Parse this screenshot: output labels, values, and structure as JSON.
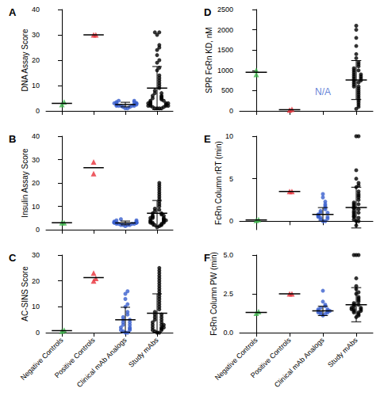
{
  "chart_data": [
    {
      "type": "scatter",
      "title": "A",
      "ylabel": "DNA Assay Score",
      "categories": [
        "Negative Controls",
        "Positive Controls",
        "Clinical mAb Analogs",
        "Study mAbs"
      ],
      "ylim": [
        0,
        40
      ],
      "yticks": [
        0,
        10,
        20,
        30,
        40
      ],
      "tick_labels": "y",
      "groups": [
        {
          "color": "#3cb44b",
          "marker": "triangle",
          "values": [
            2.5,
            3.5
          ],
          "mean": 3
        },
        {
          "color": "#e8313a",
          "marker": "triangle",
          "values": [
            30,
            30
          ],
          "mean": 30
        },
        {
          "color": "#3a5fcd",
          "marker": "circle",
          "values": [
            1,
            1,
            1.5,
            1.5,
            2,
            2,
            2,
            2,
            2,
            2.5,
            2.5,
            2.5,
            3,
            3,
            3,
            3,
            3.5,
            3.5,
            4,
            4
          ],
          "mean": 2.5,
          "sd": 0.9
        },
        {
          "color": "#000000",
          "marker": "circle",
          "values": [
            1,
            1,
            1,
            1,
            1.5,
            1.5,
            2,
            2,
            2,
            2,
            2.5,
            2.5,
            3,
            3,
            3,
            3,
            3.5,
            4,
            4,
            4.5,
            5,
            5,
            5.5,
            6,
            6,
            7,
            7,
            8,
            9,
            10,
            11,
            12,
            13,
            14,
            16,
            17,
            19,
            20,
            22,
            24,
            25,
            26,
            30,
            31,
            31
          ],
          "mean": 9,
          "sd": 8.5
        }
      ]
    },
    {
      "type": "scatter",
      "title": "B",
      "ylabel": "Insulin Assay Score",
      "categories": [
        "Negative Controls",
        "Positive Controls",
        "Clinical mAb Analogs",
        "Study mAbs"
      ],
      "ylim": [
        0,
        40
      ],
      "yticks": [
        0,
        10,
        20,
        30,
        40
      ],
      "tick_labels": "y",
      "groups": [
        {
          "color": "#3cb44b",
          "marker": "triangle",
          "values": [
            3,
            3
          ],
          "mean": 3
        },
        {
          "color": "#e8313a",
          "marker": "triangle",
          "values": [
            24,
            29
          ],
          "mean": 26.5
        },
        {
          "color": "#3a5fcd",
          "marker": "circle",
          "values": [
            1.5,
            2,
            2,
            2,
            2,
            2.5,
            2.5,
            2.5,
            2.5,
            3,
            3,
            3,
            3,
            3,
            3,
            3.5,
            3.5,
            4,
            4,
            4.5
          ],
          "mean": 2.9,
          "sd": 0.8
        },
        {
          "color": "#000000",
          "marker": "circle",
          "values": [
            1,
            1.5,
            2,
            2,
            2.5,
            2.5,
            3,
            3,
            3,
            3.5,
            3.5,
            4,
            4,
            4,
            4.5,
            5,
            5,
            5,
            5.5,
            6,
            6,
            6.5,
            7,
            7,
            8,
            8.5,
            9,
            10,
            11,
            12,
            13,
            14,
            15,
            16,
            17,
            18,
            19,
            20
          ],
          "mean": 7,
          "sd": 5.5
        }
      ]
    },
    {
      "type": "scatter",
      "title": "C",
      "ylabel": "AC-SINS Score",
      "categories": [
        "Negative Controls",
        "Positive Controls",
        "Clinical mAb Analogs",
        "Study mAbs"
      ],
      "ylim": [
        0,
        30
      ],
      "yticks": [
        0,
        10,
        20,
        30
      ],
      "groups": [
        {
          "color": "#3cb44b",
          "marker": "triangle",
          "values": [
            0.5,
            1
          ],
          "mean": 0.8
        },
        {
          "color": "#e8313a",
          "marker": "triangle",
          "values": [
            20,
            21,
            23
          ],
          "mean": 21.3
        },
        {
          "color": "#3a5fcd",
          "marker": "circle",
          "values": [
            0,
            0,
            0.5,
            1,
            1,
            1.5,
            2,
            2,
            3,
            3,
            4,
            4,
            5,
            5,
            6,
            7,
            8,
            10,
            11,
            13,
            15,
            16
          ],
          "mean": 5,
          "sd": 4.8
        },
        {
          "color": "#000000",
          "marker": "circle",
          "values": [
            0,
            0,
            0.5,
            1,
            1,
            1.5,
            2,
            2,
            2,
            3,
            3,
            3,
            4,
            4,
            5,
            5,
            6,
            6,
            7,
            7,
            8,
            9,
            10,
            11,
            12,
            13,
            14,
            15,
            16,
            17,
            18,
            19,
            20,
            21,
            22,
            23,
            24,
            25
          ],
          "mean": 7.5,
          "sd": 7.5
        }
      ]
    },
    {
      "type": "scatter",
      "title": "D",
      "ylabel": "SPR FcRn KD, nM",
      "categories": [
        "Negative Controls",
        "Positive Controls",
        "Clinical mAb Analogs",
        "Study mAbs"
      ],
      "ylim": [
        0,
        2500
      ],
      "yticks": [
        0,
        500,
        1000,
        1500,
        2000,
        2500
      ],
      "tick_labels": "y",
      "annotations": [
        {
          "text": "N/A",
          "category": "Clinical mAb Analogs"
        }
      ],
      "groups": [
        {
          "color": "#3cb44b",
          "marker": "triangle",
          "values": [
            900,
            1000
          ],
          "mean": 950
        },
        {
          "color": "#e8313a",
          "marker": "triangle",
          "values": [
            20,
            40
          ],
          "mean": 30
        },
        {
          "color": "#3a5fcd",
          "marker": "circle",
          "values": []
        },
        {
          "color": "#000000",
          "marker": "circle",
          "values": [
            50,
            100,
            150,
            200,
            250,
            300,
            350,
            400,
            450,
            500,
            550,
            600,
            600,
            650,
            700,
            700,
            750,
            750,
            800,
            800,
            850,
            850,
            900,
            900,
            950,
            1000,
            1000,
            1050,
            1100,
            1150,
            1200,
            1300,
            1400,
            1600,
            1800,
            2000,
            2100
          ],
          "mean": 760,
          "sd": 480
        }
      ]
    },
    {
      "type": "scatter",
      "title": "E",
      "ylabel": "FcRn Column rRT (min)",
      "categories": [
        "Negative Controls",
        "Positive Controls",
        "Clinical mAb Analogs",
        "Study mAbs"
      ],
      "ylim": [
        -1,
        10
      ],
      "yticks": [
        0,
        5,
        10
      ],
      "tick_labels": "y",
      "groups": [
        {
          "color": "#3cb44b",
          "marker": "triangle",
          "values": [
            0.1,
            0.2
          ],
          "mean": 0.15
        },
        {
          "color": "#e8313a",
          "marker": "triangle",
          "values": [
            3.5,
            3.5
          ],
          "mean": 3.5
        },
        {
          "color": "#3a5fcd",
          "marker": "circle",
          "values": [
            0,
            0,
            0.2,
            0.3,
            0.4,
            0.5,
            0.5,
            0.6,
            0.7,
            0.8,
            1,
            1,
            1.2,
            1.4,
            1.6,
            1.8,
            2,
            2.3,
            2.8,
            3.2
          ],
          "mean": 0.8,
          "sd": 0.8
        },
        {
          "color": "#000000",
          "marker": "circle",
          "values": [
            -0.5,
            0,
            0,
            0.2,
            0.4,
            0.5,
            0.6,
            0.8,
            1,
            1,
            1.2,
            1.4,
            1.5,
            1.6,
            1.8,
            2,
            2,
            2.2,
            2.5,
            2.8,
            3,
            3.2,
            3.5,
            4,
            4.2,
            4.5,
            5,
            6,
            10,
            10
          ],
          "mean": 1.6,
          "sd": 2.4
        }
      ]
    },
    {
      "type": "scatter",
      "title": "F",
      "ylabel": "FcRn Column PW (min)",
      "categories": [
        "Negative Controls",
        "Positive Controls",
        "Clinical mAb Analogs",
        "Study mAbs"
      ],
      "ylim": [
        0,
        5
      ],
      "yticks": [
        {
          "value": 0,
          "label": "0.0"
        },
        {
          "value": 2.5,
          "label": "2.5"
        },
        {
          "value": 5,
          "label": "5.0"
        }
      ],
      "groups": [
        {
          "color": "#3cb44b",
          "marker": "triangle",
          "values": [
            1.25,
            1.35
          ],
          "mean": 1.3
        },
        {
          "color": "#e8313a",
          "marker": "triangle",
          "values": [
            2.5,
            2.5
          ],
          "mean": 2.5
        },
        {
          "color": "#3a5fcd",
          "marker": "circle",
          "values": [
            1.1,
            1.2,
            1.2,
            1.3,
            1.3,
            1.3,
            1.4,
            1.4,
            1.4,
            1.5,
            1.5,
            1.6,
            1.7,
            1.8,
            2.0,
            2.7
          ],
          "mean": 1.4,
          "sd": 0.3
        },
        {
          "color": "#000000",
          "marker": "circle",
          "values": [
            1.0,
            1.1,
            1.2,
            1.3,
            1.3,
            1.4,
            1.4,
            1.5,
            1.5,
            1.5,
            1.6,
            1.6,
            1.7,
            1.8,
            1.8,
            1.9,
            2.0,
            2.1,
            2.2,
            2.3,
            2.5,
            2.6,
            2.8,
            3.0,
            3.5,
            5.0,
            5.0,
            5.0
          ],
          "mean": 1.8,
          "sd": 1.1
        }
      ]
    }
  ]
}
